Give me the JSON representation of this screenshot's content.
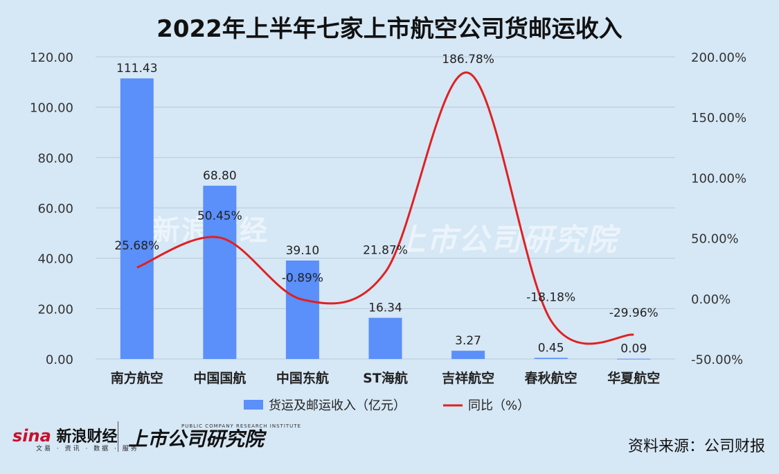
{
  "title": "2022年上半年七家上市航空公司货邮运收入",
  "chart_data": {
    "type": "bar",
    "categories": [
      "南方航空",
      "中国国航",
      "中国东航",
      "ST海航",
      "吉祥航空",
      "春秋航空",
      "华夏航空"
    ],
    "series": [
      {
        "name": "货运及邮运收入（亿元）",
        "type": "bar",
        "axis": "left",
        "color": "#5b8ff9",
        "values": [
          111.43,
          68.8,
          39.1,
          16.34,
          3.27,
          0.45,
          0.09
        ],
        "labels": [
          "111.43",
          "68.80",
          "39.10",
          "16.34",
          "3.27",
          "0.45",
          "0.09"
        ]
      },
      {
        "name": "同比（%）",
        "type": "line",
        "axis": "right",
        "color": "#e02020",
        "values": [
          25.68,
          50.45,
          -0.89,
          21.87,
          186.78,
          -18.18,
          -29.96
        ],
        "labels": [
          "25.68%",
          "50.45%",
          "-0.89%",
          "21.87%",
          "186.78%",
          "-18.18%",
          "-29.96%"
        ]
      }
    ],
    "y_left": {
      "ylim": [
        0,
        120
      ],
      "ticks": [
        "0.00",
        "20.00",
        "40.00",
        "60.00",
        "80.00",
        "100.00",
        "120.00"
      ]
    },
    "y_right": {
      "ylim": [
        -50,
        200
      ],
      "ticks": [
        "-50.00%",
        "0.00%",
        "50.00%",
        "100.00%",
        "150.00%",
        "200.00%"
      ]
    },
    "grid": true,
    "legend_position": "bottom"
  },
  "watermark": {
    "sina_text": "新浪财经",
    "sina_sub": "文易 · 资讯 · 数据 · 服务",
    "research_text": "上市公司研究院",
    "research_sub": "PUBLIC COMPANY RESEARCH INSTITUTE"
  },
  "footer": {
    "sina_logo": "sina",
    "sina_text": "新浪财经",
    "sina_sub": "文易 · 资讯 · 数据 · 服务",
    "research_text": "上市公司研究院",
    "research_sub": "PUBLIC COMPANY RESEARCH INSTITUTE",
    "source": "资料来源：公司财报"
  }
}
